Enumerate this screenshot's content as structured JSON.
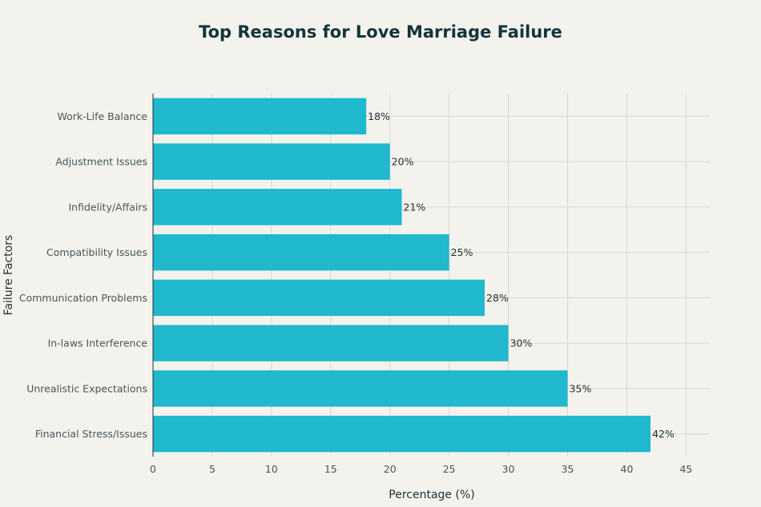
{
  "chart_data": {
    "type": "bar",
    "orientation": "horizontal",
    "title": "Top Reasons for Love Marriage Failure",
    "xlabel": "Percentage (%)",
    "ylabel": "Failure Factors",
    "categories": [
      "Work-Life Balance",
      "Adjustment Issues",
      "Infidelity/Affairs",
      "Compatibility Issues",
      "Communication Problems",
      "In-laws Interference",
      "Unrealistic Expectations",
      "Financial Stress/Issues"
    ],
    "values": [
      18,
      20,
      21,
      25,
      28,
      30,
      35,
      42
    ],
    "data_labels": [
      "18%",
      "20%",
      "21%",
      "25%",
      "28%",
      "30%",
      "35%",
      "42%"
    ],
    "xlim": [
      0,
      47
    ],
    "xticks": [
      0,
      5,
      10,
      15,
      20,
      25,
      30,
      35,
      40,
      45
    ],
    "grid": true,
    "legend": "none",
    "bar_color": "#1fb8cd"
  }
}
